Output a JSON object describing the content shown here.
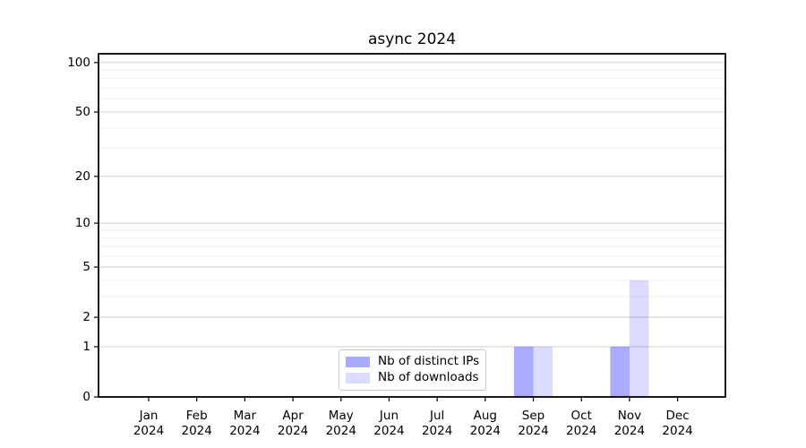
{
  "chart_data": {
    "type": "bar",
    "title": "async 2024",
    "categories": [
      "Jan 2024",
      "Feb 2024",
      "Mar 2024",
      "Apr 2024",
      "May 2024",
      "Jun 2024",
      "Jul 2024",
      "Aug 2024",
      "Sep 2024",
      "Oct 2024",
      "Nov 2024",
      "Dec 2024"
    ],
    "x_tick_line1": [
      "Jan",
      "Feb",
      "Mar",
      "Apr",
      "May",
      "Jun",
      "Jul",
      "Aug",
      "Sep",
      "Oct",
      "Nov",
      "Dec"
    ],
    "x_tick_line2": "2024",
    "series": [
      {
        "name": "Nb of distinct IPs",
        "color": "#aaaaff",
        "fill_base": "#0000ff",
        "fill_alpha": 0.33,
        "values": [
          0,
          0,
          0,
          0,
          0,
          0,
          0,
          0,
          1,
          0,
          1,
          0
        ]
      },
      {
        "name": "Nb of downloads",
        "color": "#dcdcff",
        "fill_base": "#0000ff",
        "fill_alpha": 0.14,
        "values": [
          0,
          0,
          0,
          0,
          0,
          0,
          0,
          0,
          1,
          0,
          4,
          0
        ]
      }
    ],
    "yscale": "log1p",
    "ylim": [
      0,
      113
    ],
    "y_major_ticks": [
      0,
      1,
      2,
      5,
      10,
      20,
      50,
      100
    ],
    "y_minor_gridlines": [
      3,
      4,
      6,
      7,
      8,
      9,
      30,
      40,
      60,
      70,
      80,
      90
    ],
    "grid": true,
    "legend_position": "lower center",
    "colors": {
      "background": "#ffffff",
      "spine": "#000000",
      "tick": "#000000",
      "major_grid": "#d6d6d6",
      "minor_grid": "#f0f0f0",
      "legend_border": "#c9c9c9",
      "text": "#000000"
    }
  }
}
